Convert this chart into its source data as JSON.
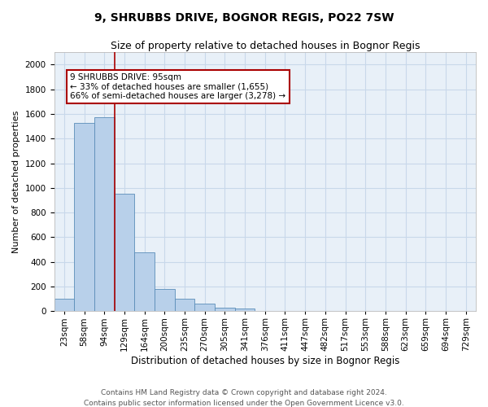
{
  "title1": "9, SHRUBBS DRIVE, BOGNOR REGIS, PO22 7SW",
  "title2": "Size of property relative to detached houses in Bognor Regis",
  "xlabel": "Distribution of detached houses by size in Bognor Regis",
  "ylabel": "Number of detached properties",
  "annotation_line1": "9 SHRUBBS DRIVE: 95sqm",
  "annotation_line2": "← 33% of detached houses are smaller (1,655)",
  "annotation_line3": "66% of semi-detached houses are larger (3,278) →",
  "footer1": "Contains HM Land Registry data © Crown copyright and database right 2024.",
  "footer2": "Contains public sector information licensed under the Open Government Licence v3.0.",
  "bar_color": "#b8d0ea",
  "bar_edge_color": "#5b8db8",
  "grid_color": "#c8d8ea",
  "background_color": "#e8f0f8",
  "ref_line_color": "#aa0000",
  "categories": [
    "23sqm",
    "58sqm",
    "94sqm",
    "129sqm",
    "164sqm",
    "200sqm",
    "235sqm",
    "270sqm",
    "305sqm",
    "341sqm",
    "376sqm",
    "411sqm",
    "447sqm",
    "482sqm",
    "517sqm",
    "553sqm",
    "588sqm",
    "623sqm",
    "659sqm",
    "694sqm",
    "729sqm"
  ],
  "heights": [
    100,
    1530,
    1570,
    950,
    480,
    180,
    100,
    60,
    30,
    20,
    0,
    0,
    0,
    0,
    0,
    0,
    0,
    0,
    0,
    0,
    0
  ],
  "ref_line_idx": 2.5,
  "ylim": [
    0,
    2100
  ],
  "yticks": [
    0,
    200,
    400,
    600,
    800,
    1000,
    1200,
    1400,
    1600,
    1800,
    2000
  ],
  "title1_fontsize": 10,
  "title2_fontsize": 9,
  "xlabel_fontsize": 8.5,
  "ylabel_fontsize": 8,
  "tick_fontsize": 7.5,
  "annotation_fontsize": 7.5,
  "footer_fontsize": 6.5
}
